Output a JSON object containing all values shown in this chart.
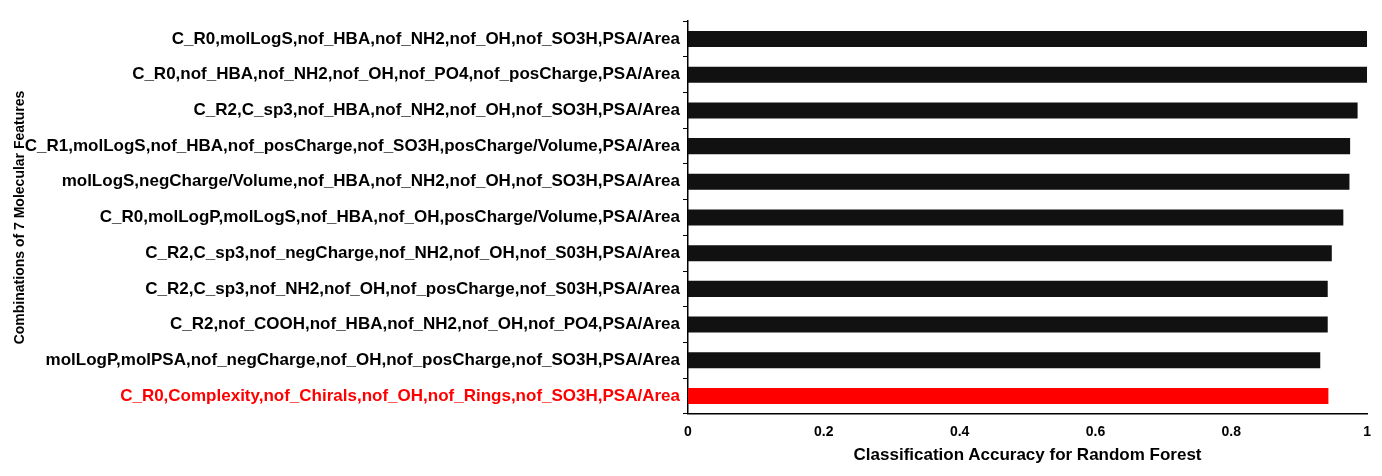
{
  "chart_data": {
    "type": "bar",
    "orientation": "horizontal",
    "xlabel": "Classification Accuracy for Random Forest",
    "ylabel": "Combinations of 7 Molecular Features",
    "categories": [
      "C_R0,molLogS,nof_HBA,nof_NH2,nof_OH,nof_SO3H,PSA/Area",
      "C_R0,nof_HBA,nof_NH2,nof_OH,nof_PO4,nof_posCharge,PSA/Area",
      "C_R2,C_sp3,nof_HBA,nof_NH2,nof_OH,nof_SO3H,PSA/Area",
      "C_R1,molLogS,nof_HBA,nof_posCharge,nof_SO3H,posCharge/Volume,PSA/Area",
      "molLogS,negCharge/Volume,nof_HBA,nof_NH2,nof_OH,nof_SO3H,PSA/Area",
      "C_R0,molLogP,molLogS,nof_HBA,nof_OH,posCharge/Volume,PSA/Area",
      "C_R2,C_sp3,nof_negCharge,nof_NH2,nof_OH,nof_S03H,PSA/Area",
      "C_R2,C_sp3,nof_NH2,nof_OH,nof_posCharge,nof_S03H,PSA/Area",
      "C_R2,nof_COOH,nof_HBA,nof_NH2,nof_OH,nof_PO4,PSA/Area",
      "molLogP,molPSA,nof_negCharge,nof_OH,nof_posCharge,nof_SO3H,PSA/Area",
      "C_R0,Complexity,nof_Chirals,nof_OH,nof_Rings,nof_SO3H,PSA/Area"
    ],
    "values": [
      1.0,
      1.0,
      0.986,
      0.975,
      0.974,
      0.965,
      0.948,
      0.942,
      0.942,
      0.931,
      0.943
    ],
    "colors": [
      "#111111",
      "#111111",
      "#111111",
      "#111111",
      "#111111",
      "#111111",
      "#111111",
      "#111111",
      "#111111",
      "#111111",
      "#ff0000"
    ],
    "xlim": [
      0,
      1
    ],
    "xticks": [
      0,
      0.2,
      0.4,
      0.6,
      0.8,
      1
    ],
    "grid": false,
    "legend": false
  }
}
